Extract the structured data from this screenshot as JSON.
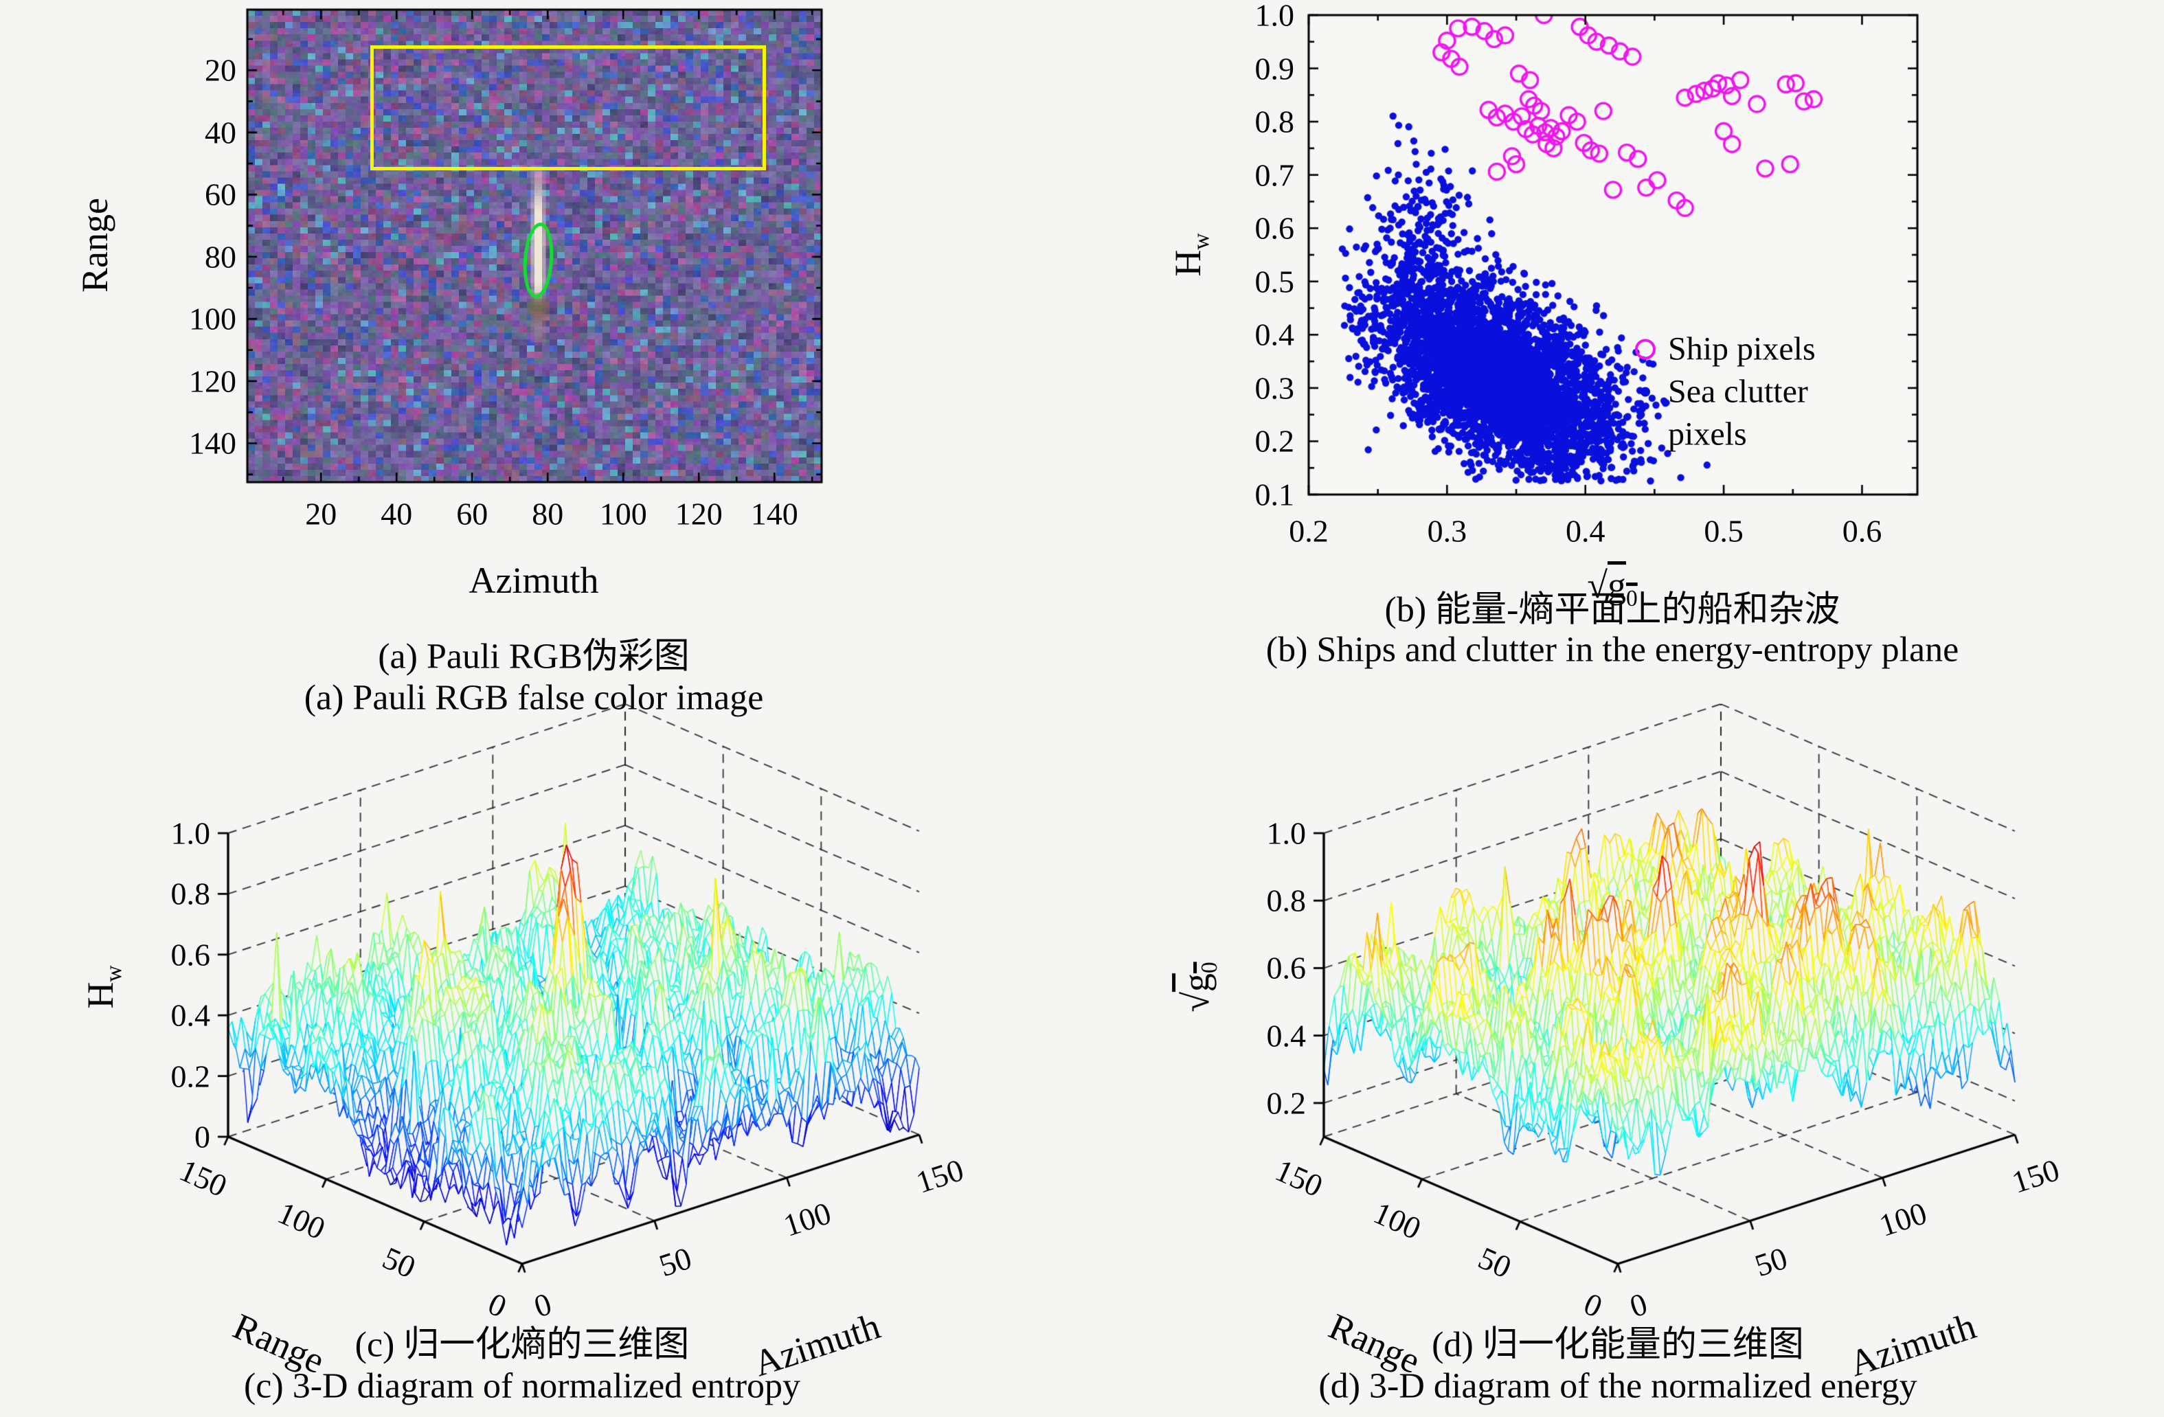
{
  "page": {
    "background": "#f5f5f3"
  },
  "chart_data": [
    {
      "id": "a",
      "type": "heatmap",
      "title_zh": "(a) Pauli RGB伪彩图",
      "title_en": "(a) Pauli RGB false color image",
      "xlabel": "Azimuth",
      "ylabel": "Range",
      "xticks": [
        20,
        40,
        60,
        80,
        100,
        120,
        140
      ],
      "yticks": [
        20,
        40,
        60,
        80,
        100,
        120,
        140
      ],
      "xlim": [
        1,
        152
      ],
      "ylim": [
        1,
        152
      ],
      "annotations": {
        "detection_box": {
          "color": "#f6f600",
          "azimuth_range": [
            33,
            136
          ],
          "range_range": [
            12,
            50
          ]
        },
        "ship_contour": {
          "color": "#10dd30",
          "azimuth_center": 76.5,
          "range_center": 80,
          "azimuth_halfwidth": 3,
          "range_halfwidth": 11
        },
        "bright_target_streak": {
          "azimuth": 77,
          "range_span": [
            54,
            97
          ]
        }
      },
      "noise": {
        "seed": 20240601,
        "palette": {
          "base": "#6c61a0",
          "pink": "#96588e",
          "blue": "#4256be",
          "teal": "#4f8cab",
          "dark": "#46437a"
        }
      }
    },
    {
      "id": "b",
      "type": "scatter",
      "title_zh": "(b) 能量-熵平面上的船和杂波",
      "title_en": "(b) Ships and clutter in the energy-entropy plane",
      "xlabel": {
        "radical": "√",
        "base": "g",
        "sub": "0"
      },
      "ylabel": {
        "base": "H",
        "sub": "w"
      },
      "xlim": [
        0.2,
        0.64
      ],
      "ylim": [
        0.1,
        1.0
      ],
      "xticks": [
        0.2,
        0.3,
        0.4,
        0.5,
        0.6
      ],
      "yticks": [
        0.1,
        0.2,
        0.3,
        0.4,
        0.5,
        0.6,
        0.7,
        0.8,
        0.9,
        1.0
      ],
      "x_minor_step": 0.05,
      "y_minor_step": 0.05,
      "legend": {
        "ship_label": "Ship pixels",
        "sea_label_line1": "Sea clutter",
        "sea_label_line2": "pixels",
        "ship_color": "#ef16ef",
        "sea_color": "#0a10dc"
      },
      "series": [
        {
          "name": "Ship pixels",
          "marker": "open-circle",
          "color": "#ef16ef",
          "points": [
            [
              0.3,
              0.952
            ],
            [
              0.308,
              0.975
            ],
            [
              0.318,
              0.978
            ],
            [
              0.327,
              0.97
            ],
            [
              0.334,
              0.955
            ],
            [
              0.342,
              0.962
            ],
            [
              0.296,
              0.93
            ],
            [
              0.303,
              0.918
            ],
            [
              0.309,
              0.903
            ],
            [
              0.37,
              1.0
            ],
            [
              0.396,
              0.978
            ],
            [
              0.402,
              0.962
            ],
            [
              0.408,
              0.95
            ],
            [
              0.417,
              0.943
            ],
            [
              0.425,
              0.932
            ],
            [
              0.434,
              0.922
            ],
            [
              0.352,
              0.89
            ],
            [
              0.36,
              0.878
            ],
            [
              0.33,
              0.822
            ],
            [
              0.336,
              0.808
            ],
            [
              0.342,
              0.815
            ],
            [
              0.348,
              0.8
            ],
            [
              0.354,
              0.81
            ],
            [
              0.359,
              0.842
            ],
            [
              0.363,
              0.83
            ],
            [
              0.368,
              0.82
            ],
            [
              0.357,
              0.786
            ],
            [
              0.362,
              0.776
            ],
            [
              0.366,
              0.792
            ],
            [
              0.371,
              0.78
            ],
            [
              0.375,
              0.788
            ],
            [
              0.379,
              0.772
            ],
            [
              0.383,
              0.782
            ],
            [
              0.372,
              0.758
            ],
            [
              0.377,
              0.75
            ],
            [
              0.388,
              0.812
            ],
            [
              0.394,
              0.8
            ],
            [
              0.399,
              0.76
            ],
            [
              0.404,
              0.746
            ],
            [
              0.41,
              0.74
            ],
            [
              0.347,
              0.735
            ],
            [
              0.35,
              0.72
            ],
            [
              0.336,
              0.706
            ],
            [
              0.413,
              0.82
            ],
            [
              0.43,
              0.742
            ],
            [
              0.438,
              0.73
            ],
            [
              0.444,
              0.676
            ],
            [
              0.452,
              0.69
            ],
            [
              0.466,
              0.652
            ],
            [
              0.472,
              0.638
            ],
            [
              0.42,
              0.672
            ],
            [
              0.472,
              0.845
            ],
            [
              0.48,
              0.852
            ],
            [
              0.486,
              0.858
            ],
            [
              0.492,
              0.862
            ],
            [
              0.496,
              0.872
            ],
            [
              0.502,
              0.868
            ],
            [
              0.506,
              0.848
            ],
            [
              0.512,
              0.878
            ],
            [
              0.524,
              0.833
            ],
            [
              0.545,
              0.87
            ],
            [
              0.552,
              0.872
            ],
            [
              0.558,
              0.838
            ],
            [
              0.5,
              0.782
            ],
            [
              0.506,
              0.758
            ],
            [
              0.548,
              0.72
            ],
            [
              0.53,
              0.712
            ],
            [
              0.565,
              0.842
            ]
          ]
        },
        {
          "name": "Sea clutter pixels",
          "marker": "dot",
          "color": "#0a10dc",
          "generated": {
            "count": 4200,
            "seed": 777,
            "mean": [
              0.338,
              0.322
            ],
            "std": [
              0.043,
              0.092
            ],
            "corr": -0.55,
            "arm_fraction": 0.06,
            "arm_mean": [
              0.283,
              0.545
            ],
            "arm_std": [
              0.016,
              0.105
            ],
            "clip_x": [
              0.222,
              0.502
            ],
            "clip_y": [
              0.125,
              0.82
            ]
          }
        }
      ]
    },
    {
      "id": "c",
      "type": "mesh3d",
      "title_zh": "(c) 归一化熵的三维图",
      "title_en": "(c) 3-D diagram of normalized entropy",
      "xlabel": "Azimuth",
      "ylabel": "Range",
      "zlabel": {
        "base": "H",
        "sub": "w"
      },
      "xticks": [
        0,
        50,
        100,
        150
      ],
      "yticks": [
        0,
        50,
        100,
        150
      ],
      "zticks": [
        0,
        0.2,
        0.4,
        0.6,
        0.8,
        1.0
      ],
      "xlim": [
        0,
        150
      ],
      "ylim": [
        0,
        150
      ],
      "zlim": [
        0,
        1
      ],
      "colormap": "jet",
      "surface": {
        "seed": 4242,
        "coarse": 15,
        "fine": 40,
        "base": 0.33,
        "amp1": 0.3,
        "amp2": 0.13,
        "jitter": 0.05,
        "clip": [
          0.02,
          0.94
        ],
        "edge_dip": 0.09,
        "peaks": [
          {
            "az": 78,
            "rg": 81,
            "amp": 0.62,
            "sigma": 4.0
          },
          {
            "az": 71,
            "rg": 76,
            "amp": 0.46,
            "sigma": 3.2
          },
          {
            "az": 34,
            "rg": 96,
            "amp": 0.26,
            "sigma": 2.4
          },
          {
            "az": 56,
            "rg": 58,
            "amp": 0.24,
            "sigma": 2.2
          },
          {
            "az": 112,
            "rg": 40,
            "amp": 0.2,
            "sigma": 2.2
          }
        ],
        "spikes": {
          "count": 26,
          "min": 0.1,
          "max": 0.32
        }
      }
    },
    {
      "id": "d",
      "type": "mesh3d",
      "title_zh": "(d) 归一化能量的三维图",
      "title_en": "(d) 3-D diagram of the normalized energy",
      "xlabel": "Azimuth",
      "ylabel": "Range",
      "zlabel": {
        "radical": "√",
        "base": "g",
        "sub": "0"
      },
      "xticks": [
        0,
        50,
        100,
        150
      ],
      "yticks": [
        0,
        50,
        100,
        150
      ],
      "zticks": [
        0.2,
        0.4,
        0.6,
        0.8,
        1.0
      ],
      "xlim": [
        0,
        150
      ],
      "ylim": [
        0,
        150
      ],
      "zlim": [
        0.1,
        1
      ],
      "colormap": "jet",
      "surface": {
        "seed": 9090,
        "coarse": 15,
        "fine": 40,
        "base": 0.57,
        "amp1": 0.24,
        "amp2": 0.12,
        "jitter": 0.05,
        "clip": [
          0.14,
          0.95
        ],
        "edge_dip": 0.1,
        "peaks": [
          {
            "az": 76,
            "rg": 80,
            "amp": 0.38,
            "sigma": 3.4
          },
          {
            "az": 50,
            "rg": 92,
            "amp": 0.34,
            "sigma": 2.8
          },
          {
            "az": 96,
            "rg": 60,
            "amp": 0.2,
            "sigma": 2.4
          }
        ],
        "spikes": {
          "count": 30,
          "min": 0.06,
          "max": 0.2
        }
      }
    }
  ]
}
